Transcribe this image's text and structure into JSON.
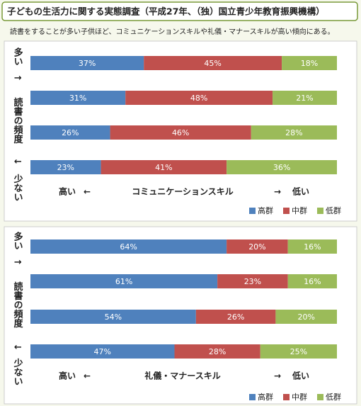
{
  "header": {
    "title": "子どもの生活力に関する実態調査（平成27年、（独）国立青少年教育振興機構）",
    "subtitle": "読書をすることが多い子供ほど、コミュニケーションスキルや礼儀・マナースキルが高い傾向にある。"
  },
  "chart_data": [
    {
      "type": "stacked-bar-horizontal",
      "xlim": [
        0,
        100
      ],
      "y_label": {
        "top": "多い",
        "arrow_up": "↑",
        "middle": "読書の頻度",
        "arrow_down": "↓",
        "bottom": "少ない"
      },
      "x_label": {
        "left": "高い",
        "left_arrow": "←",
        "center": "コミュニケーションスキル",
        "right_arrow": "→",
        "right": "低い"
      },
      "legend": "bottom-right",
      "series": [
        {
          "name": "高群",
          "color": "#4f81bd",
          "values": [
            37,
            31,
            26,
            23
          ],
          "value_labels": [
            "37%",
            "31%",
            "26%",
            "23%"
          ]
        },
        {
          "name": "中群",
          "color": "#c0504d",
          "values": [
            45,
            48,
            46,
            41
          ],
          "value_labels": [
            "45%",
            "48%",
            "46%",
            "41%"
          ]
        },
        {
          "name": "低群",
          "color": "#9bbb59",
          "values": [
            18,
            21,
            28,
            36
          ],
          "value_labels": [
            "18%",
            "21%",
            "28%",
            "36%"
          ]
        }
      ]
    },
    {
      "type": "stacked-bar-horizontal",
      "xlim": [
        0,
        100
      ],
      "y_label": {
        "top": "多い",
        "arrow_up": "↑",
        "middle": "読書の頻度",
        "arrow_down": "↓",
        "bottom": "少ない"
      },
      "x_label": {
        "left": "高い",
        "left_arrow": "←",
        "center": "礼儀・マナースキル",
        "right_arrow": "→",
        "right": "低い"
      },
      "legend": "bottom-right",
      "series": [
        {
          "name": "高群",
          "color": "#4f81bd",
          "values": [
            64,
            61,
            54,
            47
          ],
          "value_labels": [
            "64%",
            "61%",
            "54%",
            "47%"
          ]
        },
        {
          "name": "中群",
          "color": "#c0504d",
          "values": [
            20,
            23,
            26,
            28
          ],
          "value_labels": [
            "20%",
            "23%",
            "26%",
            "28%"
          ]
        },
        {
          "name": "低群",
          "color": "#9bbb59",
          "values": [
            16,
            16,
            20,
            25
          ],
          "value_labels": [
            "16%",
            "16%",
            "20%",
            "25%"
          ]
        }
      ]
    }
  ]
}
